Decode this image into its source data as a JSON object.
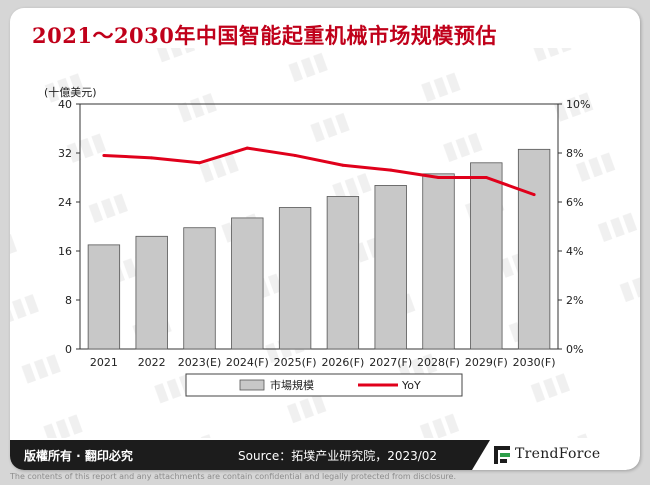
{
  "title": "2021～2030年中国智能起重机械市场规模预估",
  "chart_data": {
    "type": "bar",
    "unit_label": "(十億美元)",
    "categories": [
      "2021",
      "2022",
      "2023(E)",
      "2024(F)",
      "2025(F)",
      "2026(F)",
      "2027(F)",
      "2028(F)",
      "2029(F)",
      "2030(F)"
    ],
    "series": [
      {
        "name": "市場規模",
        "type": "bar",
        "axis": "left",
        "color": "#c8c8c8",
        "values": [
          17.0,
          18.4,
          19.8,
          21.4,
          23.1,
          24.9,
          26.7,
          28.6,
          30.4,
          32.6
        ]
      },
      {
        "name": "YoY",
        "type": "line",
        "axis": "right",
        "color": "#e0001b",
        "values": [
          7.9,
          7.8,
          7.6,
          8.2,
          7.9,
          7.5,
          7.3,
          7.0,
          7.0,
          6.3
        ]
      }
    ],
    "y_left": {
      "min": 0,
      "max": 40,
      "ticks": [
        "0",
        "8",
        "16",
        "24",
        "32",
        "40"
      ]
    },
    "y_right": {
      "min": 0,
      "max": 10,
      "ticks": [
        "0%",
        "2%",
        "4%",
        "6%",
        "8%",
        "10%"
      ]
    },
    "grid": false,
    "legend_position": "bottom"
  },
  "footer": {
    "left_text": "版權所有 · 翻印必究",
    "source": "Source：拓墣产业研究院，2023/02",
    "brand": "TrendForce"
  },
  "disclaimer": "The contents of this report and any attachments are contain confidential and legally protected from disclosure.",
  "colors": {
    "title": "#c0001a",
    "bar": "#c8c8c8",
    "line": "#e0001b",
    "footer": "#1c1c1c"
  }
}
